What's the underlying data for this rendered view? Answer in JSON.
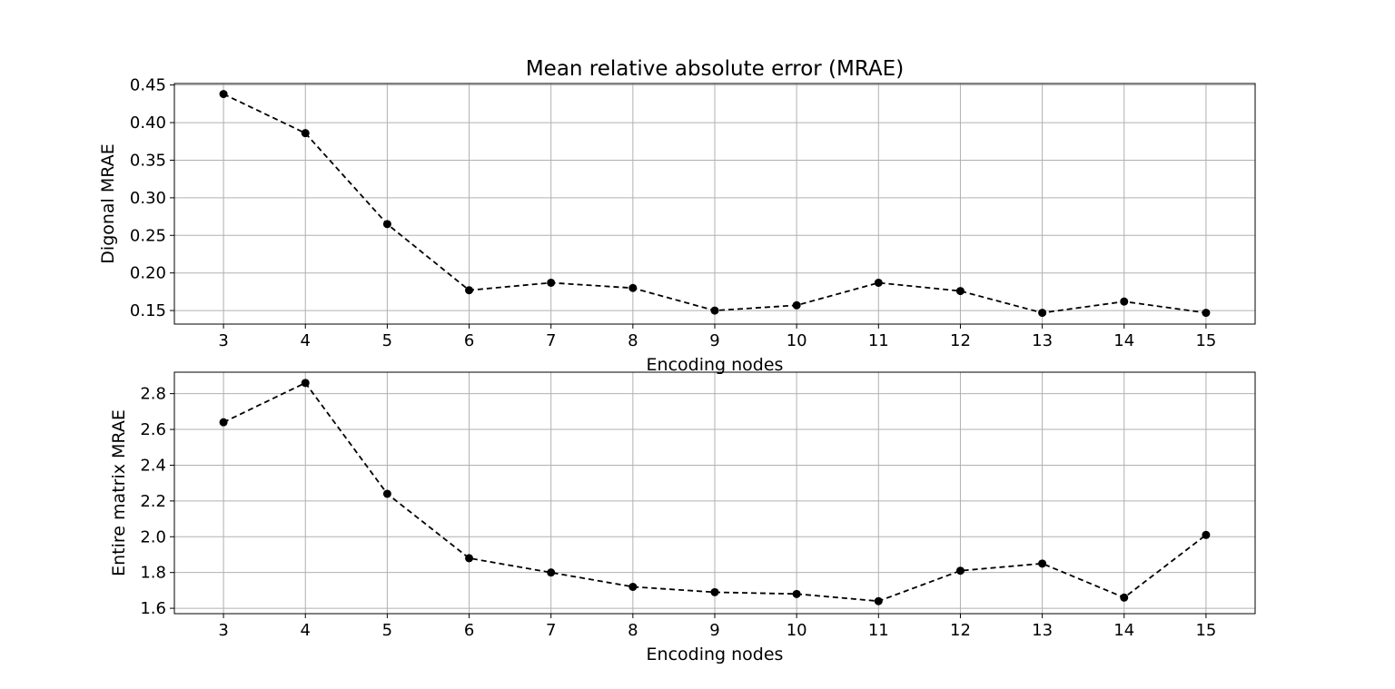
{
  "chart_data": [
    {
      "type": "line",
      "title": "Mean relative absolute error (MRAE)",
      "xlabel": "Encoding nodes",
      "ylabel": "Digonal MRAE",
      "x": [
        3,
        4,
        5,
        6,
        7,
        8,
        9,
        10,
        11,
        12,
        13,
        14,
        15
      ],
      "xticks": [
        "3",
        "4",
        "5",
        "6",
        "7",
        "8",
        "9",
        "10",
        "11",
        "12",
        "13",
        "14",
        "15"
      ],
      "xlim": [
        2.4,
        15.6
      ],
      "ylim": [
        0.132,
        0.452
      ],
      "yticks": [
        0.15,
        0.2,
        0.25,
        0.3,
        0.35,
        0.4,
        0.45
      ],
      "ytick_labels": [
        "0.15",
        "0.20",
        "0.25",
        "0.30",
        "0.35",
        "0.40",
        "0.45"
      ],
      "grid": true,
      "series": [
        {
          "values": [
            0.438,
            0.386,
            0.265,
            0.177,
            0.187,
            0.18,
            0.15,
            0.157,
            0.187,
            0.176,
            0.147,
            0.162,
            0.147
          ],
          "color": "#000000",
          "linestyle": "dashed",
          "marker": "circle"
        }
      ]
    },
    {
      "type": "line",
      "title": "",
      "xlabel": "Encoding nodes",
      "ylabel": "Entire matrix MRAE",
      "x": [
        3,
        4,
        5,
        6,
        7,
        8,
        9,
        10,
        11,
        12,
        13,
        14,
        15
      ],
      "xticks": [
        "3",
        "4",
        "5",
        "6",
        "7",
        "8",
        "9",
        "10",
        "11",
        "12",
        "13",
        "14",
        "15"
      ],
      "xlim": [
        2.4,
        15.6
      ],
      "ylim": [
        1.57,
        2.92
      ],
      "yticks": [
        1.6,
        1.8,
        2.0,
        2.2,
        2.4,
        2.6,
        2.8
      ],
      "ytick_labels": [
        "1.6",
        "1.8",
        "2.0",
        "2.2",
        "2.4",
        "2.6",
        "2.8"
      ],
      "grid": true,
      "series": [
        {
          "values": [
            2.64,
            2.86,
            2.24,
            1.88,
            1.8,
            1.72,
            1.69,
            1.68,
            1.64,
            1.81,
            1.85,
            1.66,
            2.01
          ],
          "color": "#000000",
          "linestyle": "dashed",
          "marker": "circle"
        }
      ]
    }
  ]
}
